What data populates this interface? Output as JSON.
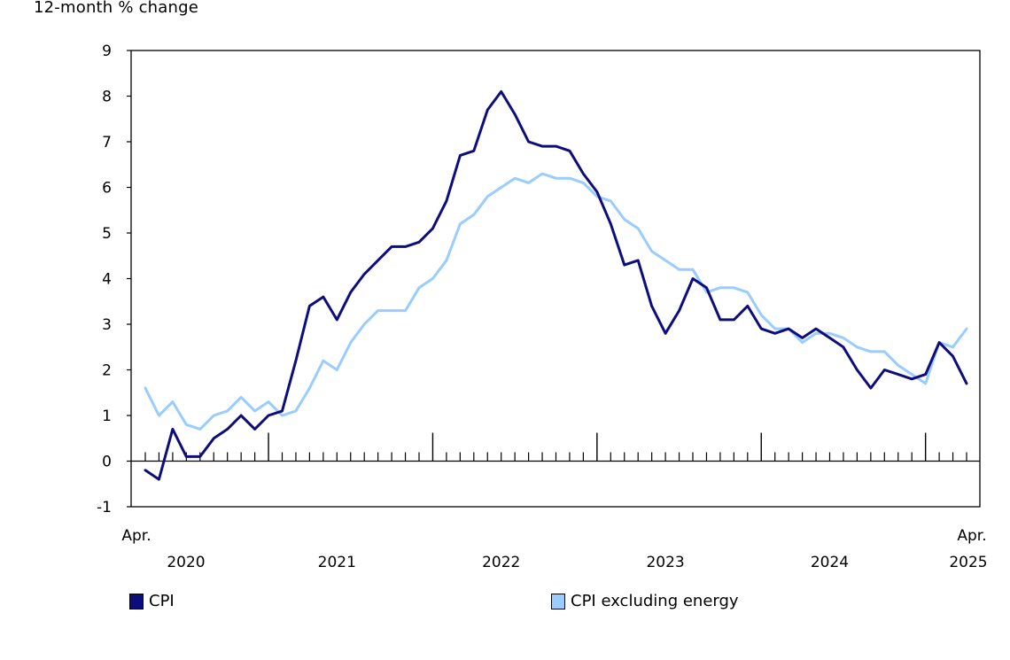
{
  "chart_data": {
    "type": "line",
    "unit_label": "12-month % change",
    "ylim": [
      -1,
      9
    ],
    "y_ticks": [
      "-1",
      "0",
      "1",
      "2",
      "3",
      "4",
      "5",
      "6",
      "7",
      "8",
      "9"
    ],
    "x_range": [
      "2020-04",
      "2025-04"
    ],
    "x_labels": [
      {
        "month": "2020-04",
        "top": "Apr.",
        "bottom": "2020"
      },
      {
        "month": "2021-06",
        "top": "",
        "bottom": "2021"
      },
      {
        "month": "2022-06",
        "top": "",
        "bottom": "2022"
      },
      {
        "month": "2023-06",
        "top": "",
        "bottom": "2023"
      },
      {
        "month": "2024-06",
        "top": "",
        "bottom": "2024"
      },
      {
        "month": "2025-04",
        "top": "Apr.",
        "bottom": "2025"
      }
    ],
    "major_ticks": [
      "2021-01",
      "2022-01",
      "2023-01",
      "2024-01",
      "2025-01"
    ],
    "grid": false,
    "legend_position": "bottom",
    "series": [
      {
        "name": "CPI",
        "color": "#0d0d7d",
        "values": [
          -0.2,
          -0.4,
          0.7,
          0.1,
          0.1,
          0.5,
          0.7,
          1.0,
          0.7,
          1.0,
          1.1,
          2.2,
          3.4,
          3.6,
          3.1,
          3.7,
          4.1,
          4.4,
          4.7,
          4.7,
          4.8,
          5.1,
          5.7,
          6.7,
          6.8,
          7.7,
          8.1,
          7.6,
          7.0,
          6.9,
          6.9,
          6.8,
          6.3,
          5.9,
          5.2,
          4.3,
          4.4,
          3.4,
          2.8,
          3.3,
          4.0,
          3.8,
          3.1,
          3.1,
          3.4,
          2.9,
          2.8,
          2.9,
          2.7,
          2.9,
          2.7,
          2.5,
          2.0,
          1.6,
          2.0,
          1.9,
          1.8,
          1.9,
          2.6,
          2.3,
          1.7
        ]
      },
      {
        "name": "CPI excluding energy",
        "color": "#99ccff",
        "values": [
          1.6,
          1.0,
          1.3,
          0.8,
          0.7,
          1.0,
          1.1,
          1.4,
          1.1,
          1.3,
          1.0,
          1.1,
          1.6,
          2.2,
          2.0,
          2.6,
          3.0,
          3.3,
          3.3,
          3.3,
          3.8,
          4.0,
          4.4,
          5.2,
          5.4,
          5.8,
          6.0,
          6.2,
          6.1,
          6.3,
          6.2,
          6.2,
          6.1,
          5.8,
          5.7,
          5.3,
          5.1,
          4.6,
          4.4,
          4.2,
          4.2,
          3.7,
          3.8,
          3.8,
          3.7,
          3.2,
          2.9,
          2.9,
          2.6,
          2.8,
          2.8,
          2.7,
          2.5,
          2.4,
          2.4,
          2.1,
          1.9,
          1.7,
          2.6,
          2.5,
          2.9
        ]
      }
    ]
  }
}
